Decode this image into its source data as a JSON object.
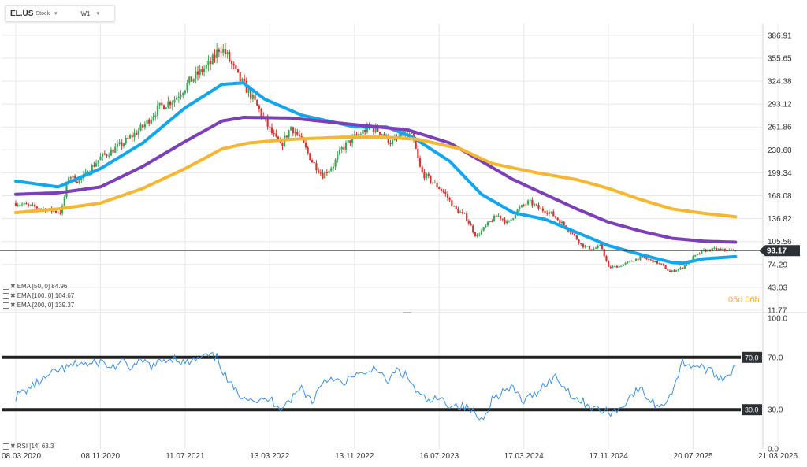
{
  "toolbar": {
    "symbol": "EL.US",
    "type": "Stock",
    "timeframe": "W1"
  },
  "countdown": "05d 06h",
  "colors": {
    "up": "#3aa856",
    "down": "#d93333",
    "ema50": "#12a6ee",
    "ema100": "#7b3fb8",
    "ema200": "#f5b731",
    "rsi": "#3b8fe0",
    "grid": "#e8e8e8",
    "level_line": "#222222"
  },
  "chart_data": [
    {
      "type": "candlestick",
      "timeframe": "W1",
      "price_axis": {
        "labels": [
          "386.91",
          "355.65",
          "324.38",
          "293.12",
          "261.86",
          "230.60",
          "199.34",
          "168.08",
          "136.82",
          "105.56",
          "74.29",
          "43.03",
          "11.77"
        ],
        "ylim": [
          11.77,
          386.91
        ]
      },
      "last_price": "93.17",
      "time_axis": {
        "labels": [
          "08.03.2020",
          "08.11.2020",
          "11.07.2021",
          "13.03.2022",
          "13.11.2022",
          "16.07.2023",
          "17.03.2024",
          "17.11.2024",
          "20.07.2025",
          "21.03.2026"
        ]
      },
      "candle_path": [
        [
          0.0,
          158
        ],
        [
          4.3,
          145
        ],
        [
          5.0,
          195
        ],
        [
          6.0,
          188
        ],
        [
          8.0,
          220
        ],
        [
          10.0,
          238
        ],
        [
          12.0,
          262
        ],
        [
          13.5,
          288
        ],
        [
          15.0,
          300
        ],
        [
          16.5,
          325
        ],
        [
          17.5,
          338
        ],
        [
          18.5,
          350
        ],
        [
          19.3,
          372
        ],
        [
          20.0,
          358
        ],
        [
          21.0,
          330
        ],
        [
          22.0,
          310
        ],
        [
          23.0,
          285
        ],
        [
          24.0,
          258
        ],
        [
          25.0,
          235
        ],
        [
          26.0,
          262
        ],
        [
          26.8,
          248
        ],
        [
          28.0,
          215
        ],
        [
          29.0,
          196
        ],
        [
          30.0,
          210
        ],
        [
          30.8,
          232
        ],
        [
          32.0,
          248
        ],
        [
          33.5,
          262
        ],
        [
          34.5,
          255
        ],
        [
          35.5,
          240
        ],
        [
          36.5,
          252
        ],
        [
          37.5,
          248
        ],
        [
          38.3,
          200
        ],
        [
          39.5,
          185
        ],
        [
          40.5,
          172
        ],
        [
          41.5,
          150
        ],
        [
          42.5,
          140
        ],
        [
          43.5,
          112
        ],
        [
          44.5,
          128
        ],
        [
          45.5,
          142
        ],
        [
          46.5,
          130
        ],
        [
          47.5,
          150
        ],
        [
          48.5,
          160
        ],
        [
          49.5,
          150
        ],
        [
          50.5,
          145
        ],
        [
          51.5,
          132
        ],
        [
          52.5,
          118
        ],
        [
          53.5,
          100
        ],
        [
          54.5,
          95
        ],
        [
          55.3,
          100
        ],
        [
          56.0,
          70
        ],
        [
          57.0,
          72
        ],
        [
          58.0,
          78
        ],
        [
          59.0,
          84
        ],
        [
          60.0,
          80
        ],
        [
          61.0,
          74
        ],
        [
          61.8,
          64
        ],
        [
          63.0,
          70
        ],
        [
          64.0,
          84
        ],
        [
          65.0,
          93
        ],
        [
          66.0,
          95
        ],
        [
          67.0,
          94
        ],
        [
          68.0,
          93.17
        ]
      ],
      "series": [
        {
          "name": "EMA [50, 0]",
          "value": "84.96",
          "points": [
            [
              0,
              188
            ],
            [
              4,
              180
            ],
            [
              8,
              205
            ],
            [
              12,
              240
            ],
            [
              16,
              288
            ],
            [
              19.5,
              320
            ],
            [
              21.5,
              322
            ],
            [
              23.5,
              300
            ],
            [
              27,
              278
            ],
            [
              32,
              262
            ],
            [
              35,
              262
            ],
            [
              37.5,
              248
            ],
            [
              41,
              215
            ],
            [
              44,
              170
            ],
            [
              47,
              145
            ],
            [
              50,
              136
            ],
            [
              53,
              118
            ],
            [
              56,
              100
            ],
            [
              59,
              88
            ],
            [
              62,
              77
            ],
            [
              63,
              76
            ],
            [
              65,
              82
            ],
            [
              68,
              84.96
            ]
          ]
        },
        {
          "name": "EMA [100, 0]",
          "value": "104.67",
          "points": [
            [
              0,
              170
            ],
            [
              4,
              172
            ],
            [
              8,
              180
            ],
            [
              12,
              208
            ],
            [
              16,
              242
            ],
            [
              19.5,
              270
            ],
            [
              21.5,
              275
            ],
            [
              26,
              274
            ],
            [
              32,
              265
            ],
            [
              37,
              258
            ],
            [
              41,
              240
            ],
            [
              44,
              215
            ],
            [
              47,
              190
            ],
            [
              50,
              170
            ],
            [
              53,
              150
            ],
            [
              56,
              132
            ],
            [
              59,
              120
            ],
            [
              62,
              110
            ],
            [
              65,
              106
            ],
            [
              68,
              104.67
            ]
          ]
        },
        {
          "name": "EMA [200, 0]",
          "value": "139.37",
          "points": [
            [
              0,
              145
            ],
            [
              4,
              150
            ],
            [
              8,
              158
            ],
            [
              12,
              178
            ],
            [
              16,
              205
            ],
            [
              19.5,
              232
            ],
            [
              22,
              240
            ],
            [
              26,
              245
            ],
            [
              31,
              248
            ],
            [
              35,
              248
            ],
            [
              38,
              245
            ],
            [
              42,
              232
            ],
            [
              45,
              212
            ],
            [
              49,
              200
            ],
            [
              53,
              190
            ],
            [
              56,
              178
            ],
            [
              59,
              163
            ],
            [
              62,
              150
            ],
            [
              65,
              144
            ],
            [
              68,
              139.37
            ]
          ]
        }
      ]
    },
    {
      "type": "line",
      "indicator": "RSI [14]",
      "value": "63.3",
      "axis_labels": [
        "100.0",
        "70.0",
        "30.0",
        "0.0"
      ],
      "ylim": [
        0,
        100
      ],
      "levels": [
        70,
        30
      ],
      "level_labels": [
        "70.0",
        "30.0"
      ],
      "values": [
        [
          0,
          40
        ],
        [
          1,
          45
        ],
        [
          2,
          50
        ],
        [
          3,
          55
        ],
        [
          4,
          60
        ],
        [
          5,
          62
        ],
        [
          6,
          66
        ],
        [
          7,
          64
        ],
        [
          8,
          67
        ],
        [
          9,
          62
        ],
        [
          10,
          66
        ],
        [
          11,
          62
        ],
        [
          12,
          67
        ],
        [
          13,
          63
        ],
        [
          14,
          68
        ],
        [
          15,
          70
        ],
        [
          16,
          65
        ],
        [
          17,
          68
        ],
        [
          18,
          71
        ],
        [
          19,
          70
        ],
        [
          20,
          52
        ],
        [
          21,
          42
        ],
        [
          22,
          40
        ],
        [
          23,
          36
        ],
        [
          24,
          38
        ],
        [
          25,
          32
        ],
        [
          26,
          38
        ],
        [
          27,
          47
        ],
        [
          28,
          36
        ],
        [
          29,
          52
        ],
        [
          30,
          55
        ],
        [
          31,
          48
        ],
        [
          32,
          58
        ],
        [
          33,
          55
        ],
        [
          34,
          64
        ],
        [
          35,
          50
        ],
        [
          36,
          60
        ],
        [
          37,
          55
        ],
        [
          38,
          42
        ],
        [
          39,
          36
        ],
        [
          40,
          38
        ],
        [
          41,
          34
        ],
        [
          42,
          33
        ],
        [
          43,
          30
        ],
        [
          44,
          22
        ],
        [
          45,
          38
        ],
        [
          46,
          44
        ],
        [
          47,
          46
        ],
        [
          48,
          36
        ],
        [
          49,
          42
        ],
        [
          50,
          50
        ],
        [
          51,
          55
        ],
        [
          52,
          46
        ],
        [
          53,
          38
        ],
        [
          54,
          34
        ],
        [
          55,
          30
        ],
        [
          56,
          28
        ],
        [
          57,
          30
        ],
        [
          58,
          40
        ],
        [
          59,
          46
        ],
        [
          60,
          36
        ],
        [
          61,
          32
        ],
        [
          62,
          44
        ],
        [
          63,
          66
        ],
        [
          64,
          64
        ],
        [
          65,
          62
        ],
        [
          66,
          57
        ],
        [
          67,
          54
        ],
        [
          68,
          63.3
        ]
      ]
    }
  ]
}
